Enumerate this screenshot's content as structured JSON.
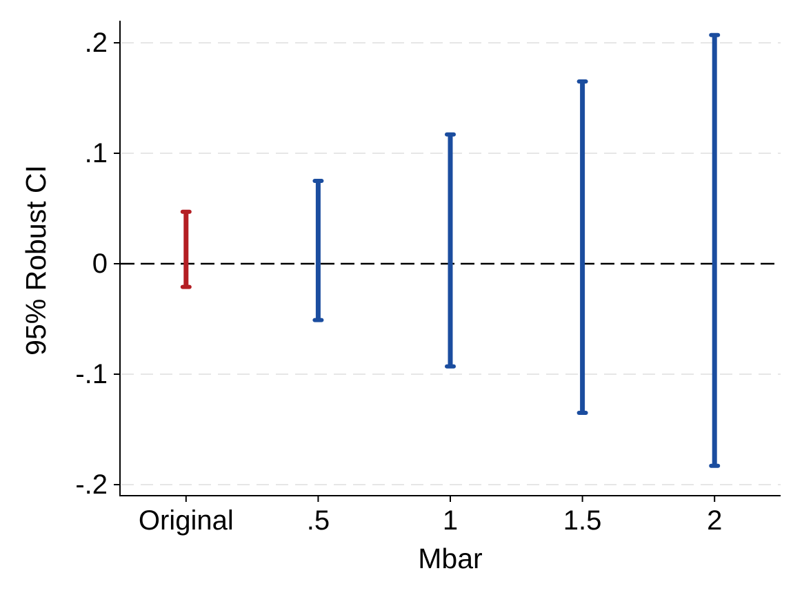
{
  "chart_data": {
    "type": "bar",
    "bar_style": "capped-range",
    "categories": [
      "Original",
      ".5",
      "1",
      "1.5",
      "2"
    ],
    "series": [
      {
        "lower": [
          -0.021,
          -0.051,
          -0.093,
          -0.135,
          -0.183
        ],
        "upper": [
          0.047,
          0.075,
          0.117,
          0.165,
          0.207
        ],
        "colors": [
          "#b41e23",
          "#1b4d9f",
          "#1b4d9f",
          "#1b4d9f",
          "#1b4d9f"
        ]
      }
    ],
    "xlabel": "Mbar",
    "ylabel": "95% Robust CI",
    "ylim": [
      -0.21,
      0.22
    ],
    "yticks": [
      0.2,
      0.1,
      0,
      -0.1,
      -0.2
    ],
    "ytick_labels": [
      ".2",
      ".1",
      "0",
      "-.1",
      "-.2"
    ],
    "grid": true,
    "grid_color": "#e6e6e6",
    "reference_line": {
      "y": 0,
      "color": "#000000"
    }
  }
}
